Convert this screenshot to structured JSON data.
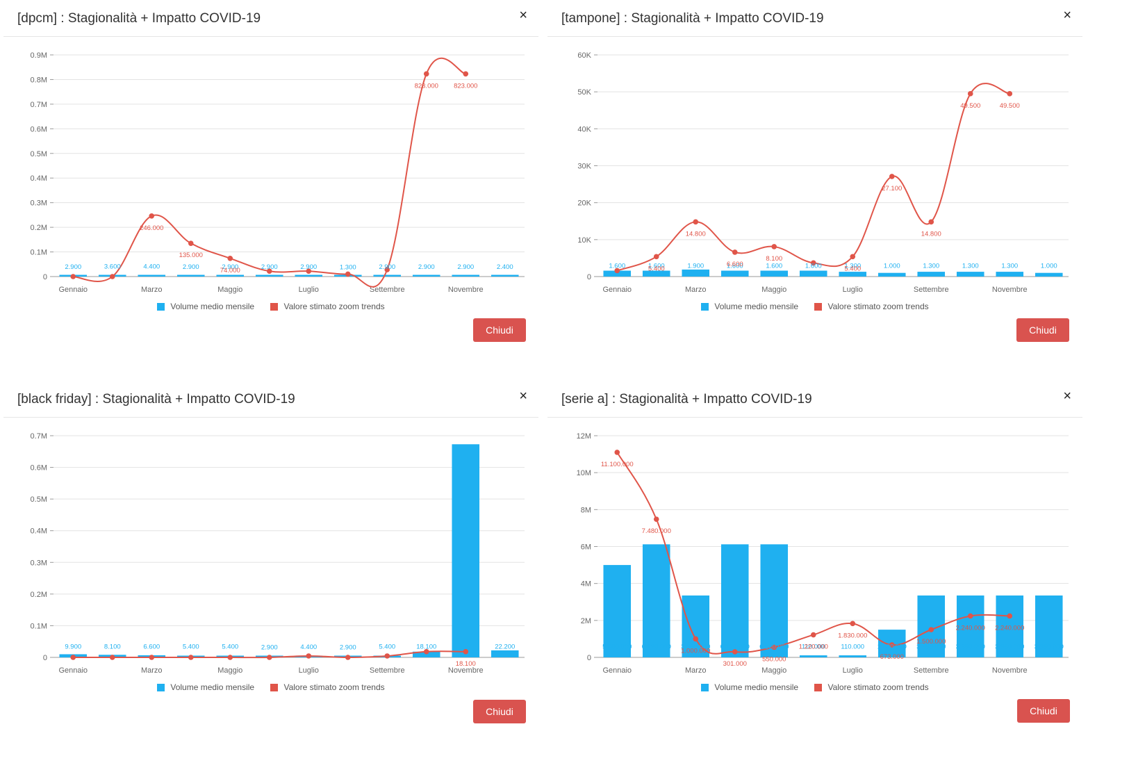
{
  "legend": {
    "bar_label": "Volume medio mensile",
    "line_label": "Valore stimato zoom trends"
  },
  "colors": {
    "bar": "#1fb0f0",
    "line": "#e05549",
    "button": "#d9534f"
  },
  "icons": {
    "close": "×"
  },
  "panels": [
    {
      "title": "[dpcm] : Stagionalità + Impatto COVID-19",
      "button_label": "Chiudi",
      "chart_data": {
        "type": "bar+line",
        "ylim": [
          0,
          900000
        ],
        "yticks": [
          0,
          100000,
          200000,
          300000,
          400000,
          500000,
          600000,
          700000,
          800000,
          900000
        ],
        "ytick_labels": [
          "0",
          "0.1M",
          "0.2M",
          "0.3M",
          "0.4M",
          "0.5M",
          "0.6M",
          "0.7M",
          "0.8M",
          "0.9M"
        ],
        "categories": [
          "Gennaio",
          "",
          "Marzo",
          "",
          "Maggio",
          "",
          "Luglio",
          "",
          "Settembre",
          "",
          "Novembre",
          ""
        ],
        "series": [
          {
            "name": "Volume medio mensile",
            "type": "bar",
            "values": [
              2900,
              3600,
              4400,
              2900,
              2900,
              2900,
              2900,
              1300,
              2900,
              2900,
              2900,
              2400
            ],
            "labels": [
              "2.900",
              "3.600",
              "4.400",
              "2.900",
              "2.900",
              "2.900",
              "2.900",
              "1.300",
              "2.900",
              "2.900",
              "2.900",
              "2.400"
            ]
          },
          {
            "name": "Valore stimato zoom trends",
            "type": "line",
            "values": [
              0,
              0,
              246000,
              135000,
              74000,
              22000,
              22000,
              10000,
              28000,
              823000,
              823000,
              null
            ],
            "labels": [
              "",
              "",
              "246.000",
              "135.000",
              "74.000",
              "",
              "",
              "",
              "",
              "823.000",
              "823.000",
              ""
            ]
          }
        ]
      }
    },
    {
      "title": "[tampone] : Stagionalità + Impatto COVID-19",
      "button_label": "Chiudi",
      "chart_data": {
        "type": "bar+line",
        "ylim": [
          0,
          60000
        ],
        "yticks": [
          0,
          10000,
          20000,
          30000,
          40000,
          50000,
          60000
        ],
        "ytick_labels": [
          "0",
          "10K",
          "20K",
          "30K",
          "40K",
          "50K",
          "60K"
        ],
        "categories": [
          "Gennaio",
          "",
          "Marzo",
          "",
          "Maggio",
          "",
          "Luglio",
          "",
          "Settembre",
          "",
          "Novembre",
          ""
        ],
        "series": [
          {
            "name": "Volume medio mensile",
            "type": "bar",
            "values": [
              1600,
              1600,
              1900,
              1600,
              1600,
              1600,
              1300,
              1000,
              1300,
              1300,
              1300,
              1000
            ],
            "labels": [
              "1.600",
              "1.600",
              "1.900",
              "1.600",
              "1.600",
              "1.600",
              "1.300",
              "1.000",
              "1.300",
              "1.300",
              "1.300",
              "1.000"
            ]
          },
          {
            "name": "Valore stimato zoom trends",
            "type": "line",
            "values": [
              1600,
              5400,
              14800,
              6600,
              8100,
              3700,
              5400,
              27100,
              14800,
              49500,
              49500,
              null
            ],
            "labels": [
              "",
              "5.400",
              "14.800",
              "6.600",
              "8.100",
              "",
              "5.400",
              "27.100",
              "14.800",
              "49.500",
              "49.500",
              ""
            ]
          }
        ]
      }
    },
    {
      "title": "[black friday] : Stagionalità + Impatto COVID-19",
      "button_label": "Chiudi",
      "chart_data": {
        "type": "bar+line",
        "ylim": [
          0,
          700000
        ],
        "yticks": [
          0,
          100000,
          200000,
          300000,
          400000,
          500000,
          600000,
          700000
        ],
        "ytick_labels": [
          "0",
          "0.1M",
          "0.2M",
          "0.3M",
          "0.4M",
          "0.5M",
          "0.6M",
          "0.7M"
        ],
        "categories": [
          "Gennaio",
          "",
          "Marzo",
          "",
          "Maggio",
          "",
          "Luglio",
          "",
          "Settembre",
          "",
          "Novembre",
          ""
        ],
        "series": [
          {
            "name": "Volume medio mensile",
            "type": "bar",
            "values": [
              9900,
              8100,
              6600,
              5400,
              5400,
              2900,
              4400,
              2900,
              5400,
              18100,
              673000,
              22200
            ],
            "labels": [
              "9.900",
              "8.100",
              "6.600",
              "5.400",
              "5.400",
              "2.900",
              "4.400",
              "2.900",
              "5.400",
              "18.100",
              "",
              "22.200"
            ]
          },
          {
            "name": "Valore stimato zoom trends",
            "type": "line",
            "values": [
              0,
              0,
              0,
              0,
              0,
              0,
              4400,
              0,
              4400,
              18100,
              18100,
              null
            ],
            "labels": [
              "",
              "",
              "",
              "",
              "",
              "",
              "",
              "",
              "",
              "",
              "18.100",
              ""
            ]
          }
        ]
      }
    },
    {
      "title": "[serie a] : Stagionalità + Impatto COVID-19",
      "button_label": "Chiudi",
      "chart_data": {
        "type": "bar+line",
        "ylim": [
          0,
          12000000
        ],
        "yticks": [
          0,
          2000000,
          4000000,
          6000000,
          8000000,
          10000000,
          12000000
        ],
        "ytick_labels": [
          "0",
          "2M",
          "4M",
          "6M",
          "8M",
          "10M",
          "12M"
        ],
        "categories": [
          "Gennaio",
          "",
          "Marzo",
          "",
          "Maggio",
          "",
          "Luglio",
          "",
          "Settembre",
          "",
          "Novembre",
          ""
        ],
        "series": [
          {
            "name": "Volume medio mensile",
            "type": "bar",
            "values": [
              5000000,
              6120000,
              3350000,
              6120000,
              6120000,
              110000,
              110000,
              1500000,
              3350000,
              3350000,
              3350000,
              3350000
            ],
            "labels": [
              "5.000.000",
              "6.120.000",
              "3.350.000",
              "6.120.000",
              "6.120.000",
              "110.000",
              "110.000",
              "1.500.000",
              "3.350.000",
              "3.350.000",
              "3.350.000",
              "3.350.000"
            ]
          },
          {
            "name": "Valore stimato zoom trends",
            "type": "line",
            "values": [
              11100000,
              7480000,
              1000000,
              301000,
              550000,
              1220000,
              1830000,
              673000,
              1500000,
              2240000,
              2240000,
              null
            ],
            "labels": [
              "11.100.000",
              "7.480.000",
              "1.000.000",
              "301.000",
              "550.000",
              "1.220.000",
              "1.830.000",
              "673.000",
              "1.500.000",
              "2.240.000",
              "2.240.000",
              ""
            ]
          }
        ]
      }
    }
  ]
}
